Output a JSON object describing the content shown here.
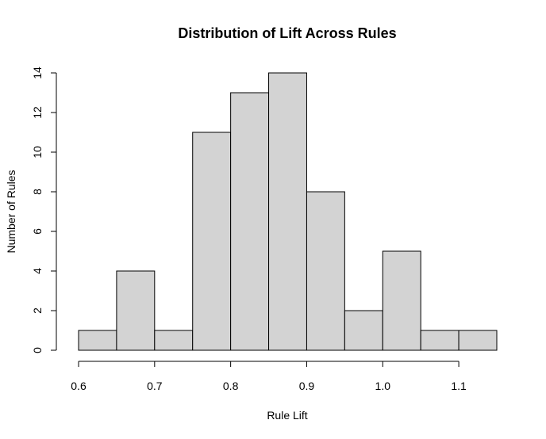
{
  "chart_data": {
    "type": "bar",
    "title": "Distribution of Lift Across Rules",
    "xlabel": "Rule Lift",
    "ylabel": "Number of Rules",
    "bin_edges": [
      0.6,
      0.65,
      0.7,
      0.75,
      0.8,
      0.85,
      0.9,
      0.95,
      1.0,
      1.05,
      1.1,
      1.15
    ],
    "values": [
      1,
      4,
      1,
      11,
      13,
      14,
      8,
      2,
      5,
      1,
      1
    ],
    "xlim": [
      0.6,
      1.15
    ],
    "ylim": [
      0,
      14
    ],
    "xticks": [
      "0.6",
      "0.7",
      "0.8",
      "0.9",
      "1.0",
      "1.1"
    ],
    "yticks": [
      "0",
      "2",
      "4",
      "6",
      "8",
      "10",
      "12",
      "14"
    ],
    "bar_color": "#d3d3d3",
    "grid": false,
    "legend": "none"
  }
}
